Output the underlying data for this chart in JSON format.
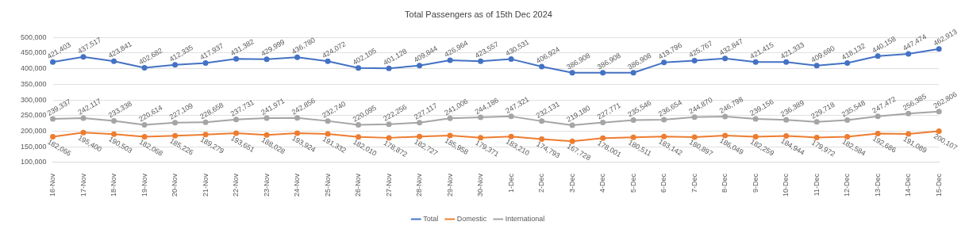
{
  "chart_data": {
    "type": "line",
    "title": "Total Passengers as of 15th Dec 2024",
    "categories": [
      "16-Nov",
      "17-Nov",
      "18-Nov",
      "19-Nov",
      "20-Nov",
      "21-Nov",
      "22-Nov",
      "23-Nov",
      "24-Nov",
      "25-Nov",
      "26-Nov",
      "27-Nov",
      "28-Nov",
      "29-Nov",
      "30-Nov",
      "1-Dec",
      "2-Dec",
      "3-Dec",
      "4-Dec",
      "5-Dec",
      "6-Dec",
      "7-Dec",
      "8-Dec",
      "9-Dec",
      "10-Dec",
      "11-Dec",
      "12-Dec",
      "13-Dec",
      "14-Dec",
      "15-Dec"
    ],
    "series": [
      {
        "name": "Total",
        "color": "#4472c4",
        "values": [
          421403,
          437517,
          423841,
          402682,
          412335,
          417937,
          431382,
          429999,
          436780,
          424072,
          402105,
          401128,
          409844,
          426964,
          423557,
          430531,
          406924,
          386908,
          386908,
          386908,
          419796,
          425767,
          432847,
          421415,
          421333,
          409690,
          418132,
          440158,
          447474,
          462913
        ],
        "value_labels": [
          "421,403",
          "437,517",
          "423,841",
          "402,682",
          "412,335",
          "417,937",
          "431,382",
          "429,999",
          "436,780",
          "424,072",
          "402,105",
          "401,128",
          "409,844",
          "426,964",
          "423,557",
          "430,531",
          "406,924",
          "386,908",
          "386,908",
          "386,908",
          "419,796",
          "425,767",
          "432,847",
          "421,415",
          "421,333",
          "409,690",
          "418,132",
          "440,158",
          "447,474",
          "462,913"
        ]
      },
      {
        "name": "Domestic",
        "color": "#ed7d31",
        "values": [
          182066,
          195400,
          190503,
          182068,
          185226,
          189279,
          193651,
          188028,
          193924,
          191332,
          182010,
          178872,
          182727,
          185958,
          179371,
          183210,
          174793,
          167728,
          178001,
          180511,
          183142,
          180897,
          186049,
          182259,
          184944,
          179972,
          182584,
          192686,
          191089,
          200107
        ],
        "value_labels": [
          "182,066",
          "195,400",
          "190,503",
          "182,068",
          "185,226",
          "189,279",
          "193,651",
          "188,028",
          "193,924",
          "191,332",
          "182,010",
          "178,872",
          "182,727",
          "185,958",
          "179,371",
          "183,210",
          "174,793",
          "167,728",
          "178,001",
          "180,511",
          "183,142",
          "180,897",
          "186,049",
          "182,259",
          "184,944",
          "179,972",
          "182,584",
          "192,686",
          "191,089",
          "200,107"
        ]
      },
      {
        "name": "International",
        "color": "#a5a5a5",
        "values": [
          239337,
          242117,
          233338,
          220614,
          227109,
          228658,
          237731,
          241971,
          242856,
          232740,
          220095,
          222256,
          227117,
          241006,
          244186,
          247321,
          232131,
          219180,
          227771,
          235546,
          236654,
          244870,
          246798,
          239156,
          236389,
          229718,
          235548,
          247472,
          256385,
          262806
        ],
        "value_labels": [
          "239,337",
          "242,117",
          "233,338",
          "220,614",
          "227,109",
          "228,658",
          "237,731",
          "241,971",
          "242,856",
          "232,740",
          "220,095",
          "222,256",
          "227,117",
          "241,006",
          "244,186",
          "247,321",
          "232,131",
          "219,180",
          "227,771",
          "235,546",
          "236,654",
          "244,870",
          "246,798",
          "239,156",
          "236,389",
          "229,718",
          "235,548",
          "247,472",
          "256,385",
          "262,806"
        ]
      }
    ],
    "ylim": [
      100000,
      500000
    ],
    "yticks": [
      {
        "value": 100000,
        "label": "100,000"
      },
      {
        "value": 150000,
        "label": "150,000"
      },
      {
        "value": 200000,
        "label": "200,000"
      },
      {
        "value": 250000,
        "label": "250,000"
      },
      {
        "value": 300000,
        "label": "300,000"
      },
      {
        "value": 350000,
        "label": "350,000"
      },
      {
        "value": 400000,
        "label": "400,000"
      },
      {
        "value": 450000,
        "label": "450,000"
      },
      {
        "value": 500000,
        "label": "500,000"
      }
    ],
    "grid": "y",
    "legend": "bottom",
    "marker": "circle",
    "line_style": "solid"
  }
}
